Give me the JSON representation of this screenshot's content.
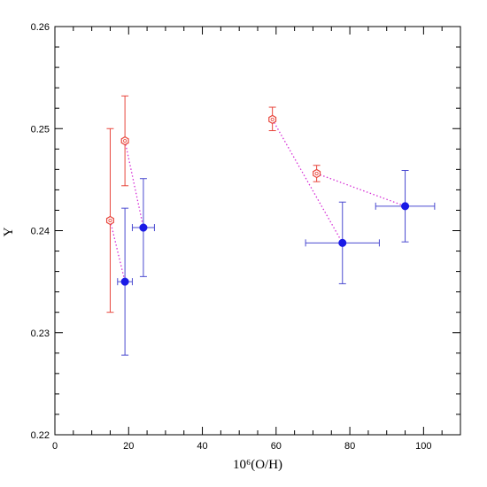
{
  "chart_data": {
    "type": "scatter",
    "xlabel": "10⁶(O/H)",
    "ylabel": "Y",
    "xlim": [
      0,
      110
    ],
    "ylim": [
      0.22,
      0.26
    ],
    "x_ticks": [
      0,
      20,
      40,
      60,
      80,
      100
    ],
    "x_tick_labels": [
      "0",
      "20",
      "40",
      "60",
      "80",
      "100"
    ],
    "y_ticks": [
      0.22,
      0.23,
      0.24,
      0.25,
      0.26
    ],
    "y_tick_labels": [
      "0.22",
      "0.23",
      "0.24",
      "0.25",
      "0.26"
    ],
    "grid": false,
    "series": [
      {
        "marker": "open-hexagon",
        "color": "#e8463c",
        "points": [
          {
            "x": 15,
            "y": 0.241,
            "y_err_low": 0.232,
            "y_err_high": 0.25
          },
          {
            "x": 19,
            "y": 0.2488,
            "y_err_low": 0.2444,
            "y_err_high": 0.2532
          },
          {
            "x": 59,
            "y": 0.2509,
            "y_err_low": 0.2498,
            "y_err_high": 0.2521
          },
          {
            "x": 71,
            "y": 0.2456,
            "y_err_low": 0.2448,
            "y_err_high": 0.2464
          }
        ]
      },
      {
        "marker": "filled-circle",
        "color": "#1a1ae6",
        "errcolor": "#4a4ad0",
        "points": [
          {
            "x": 19,
            "y": 0.235,
            "y_err_low": 0.2278,
            "y_err_high": 0.2422,
            "x_err_low": 17,
            "x_err_high": 21
          },
          {
            "x": 24,
            "y": 0.2403,
            "y_err_low": 0.2355,
            "y_err_high": 0.2451,
            "x_err_low": 21,
            "x_err_high": 27
          },
          {
            "x": 78,
            "y": 0.2388,
            "y_err_low": 0.2348,
            "y_err_high": 0.2428,
            "x_err_low": 68,
            "x_err_high": 88
          },
          {
            "x": 95,
            "y": 0.2424,
            "y_err_low": 0.2389,
            "y_err_high": 0.2459,
            "x_err_low": 87,
            "x_err_high": 103
          }
        ]
      }
    ],
    "connectors": {
      "color": "#d62fd6",
      "style": "dotted",
      "lines": [
        [
          [
            15,
            0.241
          ],
          [
            19,
            0.235
          ]
        ],
        [
          [
            19,
            0.2488
          ],
          [
            24,
            0.2403
          ]
        ],
        [
          [
            59,
            0.2509
          ],
          [
            78,
            0.2388
          ]
        ],
        [
          [
            71,
            0.2456
          ],
          [
            95,
            0.2424
          ]
        ]
      ]
    }
  }
}
